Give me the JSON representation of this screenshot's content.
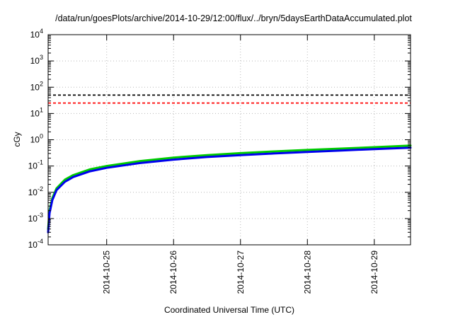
{
  "chart_data": {
    "type": "line",
    "title": "/data/run/goesPlots/archive/2014-10-29/12:00/flux/../bryn/5daysEarthDataAccumulated.plot",
    "xlabel": "Coordinated Universal Time (UTC)",
    "ylabel": "cGy",
    "x_tick_labels": [
      "2014-10-25",
      "2014-10-26",
      "2014-10-27",
      "2014-10-28",
      "2014-10-29"
    ],
    "x_range": [
      "2014-10-24T03:00",
      "2014-10-29T13:00"
    ],
    "y_scale": "log",
    "y_range": [
      0.0001,
      10000
    ],
    "y_ticks": [
      {
        "base": "10",
        "exp": "-4",
        "value": 0.0001
      },
      {
        "base": "10",
        "exp": "-3",
        "value": 0.001
      },
      {
        "base": "10",
        "exp": "-2",
        "value": 0.01
      },
      {
        "base": "10",
        "exp": "-1",
        "value": 0.1
      },
      {
        "base": "10",
        "exp": "0",
        "value": 1
      },
      {
        "base": "10",
        "exp": "1",
        "value": 10
      },
      {
        "base": "10",
        "exp": "2",
        "value": 100
      },
      {
        "base": "10",
        "exp": "3",
        "value": 1000
      },
      {
        "base": "10",
        "exp": "4",
        "value": 10000
      }
    ],
    "grid": true,
    "series": [
      {
        "style": "dashed",
        "color": "#000000",
        "points": [
          [
            "2014-10-24T03:00",
            50
          ],
          [
            "2014-10-29T13:00",
            50
          ]
        ]
      },
      {
        "style": "dashed",
        "color": "#ff0000",
        "points": [
          [
            "2014-10-24T03:00",
            25
          ],
          [
            "2014-10-29T13:00",
            25
          ]
        ]
      },
      {
        "style": "solid",
        "color": "#00cc00",
        "points": [
          [
            "2014-10-24T03:00",
            0.0004
          ],
          [
            "2014-10-24T03:30",
            0.002
          ],
          [
            "2014-10-24T04:30",
            0.006
          ],
          [
            "2014-10-24T06:00",
            0.014
          ],
          [
            "2014-10-24T09:00",
            0.03
          ],
          [
            "2014-10-24T12:00",
            0.045
          ],
          [
            "2014-10-24T18:00",
            0.075
          ],
          [
            "2014-10-25T00:00",
            0.1
          ],
          [
            "2014-10-25T12:00",
            0.155
          ],
          [
            "2014-10-26T00:00",
            0.21
          ],
          [
            "2014-10-26T12:00",
            0.26
          ],
          [
            "2014-10-27T00:00",
            0.31
          ],
          [
            "2014-10-27T12:00",
            0.36
          ],
          [
            "2014-10-28T00:00",
            0.41
          ],
          [
            "2014-10-28T12:00",
            0.46
          ],
          [
            "2014-10-29T00:00",
            0.52
          ],
          [
            "2014-10-29T13:00",
            0.6
          ]
        ]
      },
      {
        "style": "solid",
        "color": "#0000ee",
        "points": [
          [
            "2014-10-24T03:00",
            0.0003
          ],
          [
            "2014-10-24T03:30",
            0.0016
          ],
          [
            "2014-10-24T04:30",
            0.005
          ],
          [
            "2014-10-24T06:00",
            0.012
          ],
          [
            "2014-10-24T09:00",
            0.025
          ],
          [
            "2014-10-24T12:00",
            0.038
          ],
          [
            "2014-10-24T18:00",
            0.063
          ],
          [
            "2014-10-25T00:00",
            0.085
          ],
          [
            "2014-10-25T12:00",
            0.13
          ],
          [
            "2014-10-26T00:00",
            0.175
          ],
          [
            "2014-10-26T12:00",
            0.22
          ],
          [
            "2014-10-27T00:00",
            0.26
          ],
          [
            "2014-10-27T12:00",
            0.3
          ],
          [
            "2014-10-28T00:00",
            0.345
          ],
          [
            "2014-10-28T12:00",
            0.39
          ],
          [
            "2014-10-29T00:00",
            0.44
          ],
          [
            "2014-10-29T13:00",
            0.5
          ]
        ]
      }
    ]
  }
}
